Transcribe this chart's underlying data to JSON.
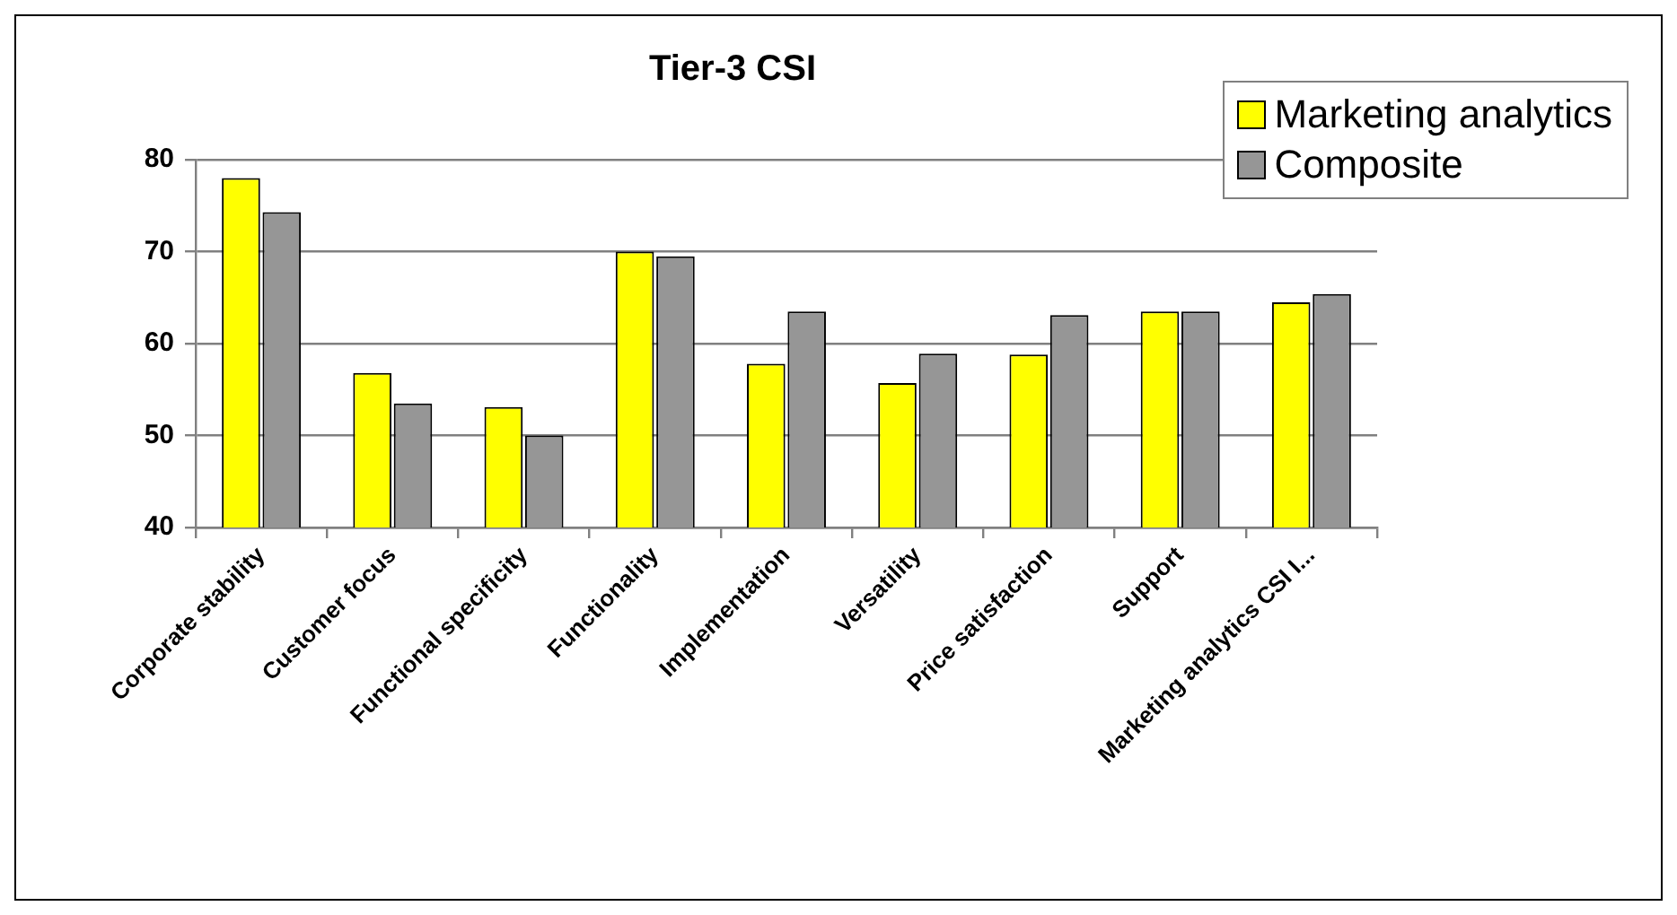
{
  "chart_data": {
    "type": "bar",
    "title": "Tier-3 CSI",
    "categories": [
      "Corporate stability",
      "Customer focus",
      "Functional specificity",
      "Functionality",
      "Implementation",
      "Versatility",
      "Price satisfaction",
      "Support",
      "Marketing analytics CSI I..."
    ],
    "series": [
      {
        "name": "Marketing analytics",
        "color": "#ffff00",
        "values": [
          78.0,
          56.8,
          53.1,
          70.0,
          57.8,
          55.7,
          58.8,
          63.5,
          64.5
        ]
      },
      {
        "name": "Composite",
        "color": "#969696",
        "values": [
          74.3,
          53.5,
          50.0,
          69.5,
          63.5,
          58.9,
          63.1,
          63.5,
          65.4
        ]
      }
    ],
    "ylim": [
      40,
      80
    ],
    "yticks": [
      40,
      50,
      60,
      70,
      80
    ],
    "grid": "y",
    "legend": "top right"
  }
}
